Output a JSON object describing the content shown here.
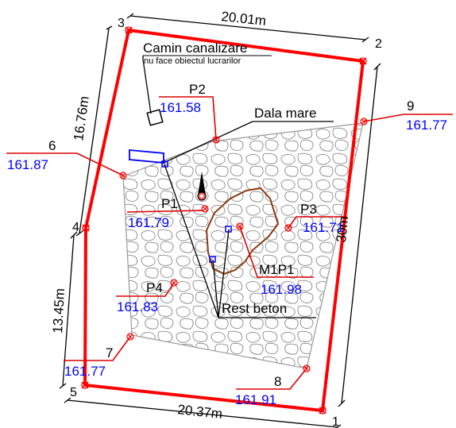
{
  "dimensions": {
    "top": "20.01m",
    "bottom": "20.37m",
    "left_upper": "16.76m",
    "left_lower": "13.45m",
    "right": "30m"
  },
  "corners": {
    "c1": "1",
    "c2": "2",
    "c3": "3",
    "c4": "4",
    "c5": "5"
  },
  "points": {
    "p1": {
      "name": "P1",
      "elevation": "161.79"
    },
    "p2": {
      "name": "P2",
      "elevation": "161.58"
    },
    "p3": {
      "name": "P3",
      "elevation": "161.71"
    },
    "p4": {
      "name": "P4",
      "elevation": "161.83"
    },
    "m1p1": {
      "name": "M1P1",
      "elevation": "161.98"
    },
    "s6": {
      "name": "6",
      "elevation": "161.87"
    },
    "s7": {
      "name": "7",
      "elevation": "161.77"
    },
    "s8": {
      "name": "8",
      "elevation": "161.91"
    },
    "s9": {
      "name": "9",
      "elevation": "161.77"
    }
  },
  "annotations": {
    "camin_title": "Camin canalizare",
    "camin_subtitle": "nu face obiectul lucrarilor",
    "dala": "Dala mare",
    "rest": "Rest beton"
  },
  "colors": {
    "boundary": "#ff0000",
    "leader": "#dd0000",
    "elevation": "#0000ff",
    "rubble": "#8a8a8a",
    "contour": "#8b3a10"
  }
}
